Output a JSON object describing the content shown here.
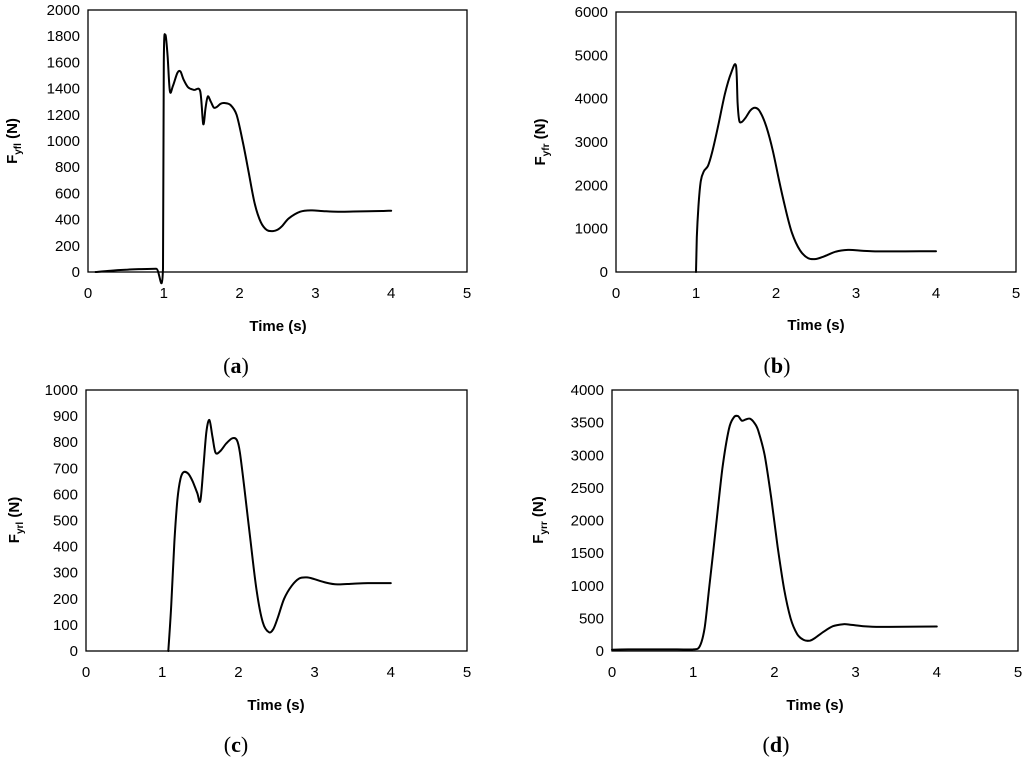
{
  "chart_data": [
    {
      "type": "line",
      "panel_label": "a",
      "xlabel": "Time (s)",
      "ylabel": {
        "main": "F",
        "sub": "yfl",
        "unit": " (N)"
      },
      "xlim": [
        0,
        5
      ],
      "ylim": [
        0,
        2000
      ],
      "xticks": [
        0,
        1,
        2,
        3,
        4,
        5
      ],
      "yticks": [
        0,
        200,
        400,
        600,
        800,
        1000,
        1200,
        1400,
        1600,
        1800,
        2000
      ],
      "grid": false,
      "series": [
        {
          "x": [
            0.1,
            0.3,
            0.5,
            0.7,
            0.9,
            0.99,
            1.0,
            1.02,
            1.05,
            1.08,
            1.12,
            1.18,
            1.22,
            1.26,
            1.32,
            1.4,
            1.48,
            1.52,
            1.55,
            1.58,
            1.62,
            1.66,
            1.7,
            1.75,
            1.8,
            1.88,
            1.96,
            2.04,
            2.12,
            2.2,
            2.28,
            2.36,
            2.44,
            2.5,
            2.56,
            2.65,
            2.8,
            2.95,
            3.1,
            3.3,
            3.5,
            3.7,
            3.9,
            4.0
          ],
          "y": [
            0,
            10,
            17,
            22,
            25,
            26,
            1600,
            1810,
            1650,
            1380,
            1420,
            1520,
            1530,
            1470,
            1410,
            1390,
            1380,
            1130,
            1250,
            1340,
            1300,
            1255,
            1260,
            1285,
            1290,
            1275,
            1200,
            1000,
            760,
            520,
            380,
            320,
            312,
            322,
            350,
            410,
            460,
            470,
            465,
            460,
            462,
            464,
            466,
            468
          ]
        }
      ]
    },
    {
      "type": "line",
      "panel_label": "b",
      "xlabel": "Time (s)",
      "ylabel": {
        "main": "F",
        "sub": "yfr",
        "unit": " (N)"
      },
      "xlim": [
        0,
        5
      ],
      "ylim": [
        0,
        6000
      ],
      "xticks": [
        0,
        1,
        2,
        3,
        4,
        5
      ],
      "yticks": [
        0,
        1000,
        2000,
        3000,
        4000,
        5000,
        6000
      ],
      "grid": false,
      "series": [
        {
          "x": [
            1.0,
            1.01,
            1.03,
            1.06,
            1.1,
            1.15,
            1.2,
            1.28,
            1.36,
            1.44,
            1.5,
            1.52,
            1.54,
            1.57,
            1.62,
            1.68,
            1.74,
            1.8,
            1.88,
            1.96,
            2.04,
            2.12,
            2.2,
            2.3,
            2.4,
            2.5,
            2.6,
            2.75,
            2.9,
            3.0,
            3.2,
            3.5,
            3.8,
            4.0
          ],
          "y": [
            0,
            800,
            1500,
            2100,
            2330,
            2450,
            2750,
            3400,
            4100,
            4600,
            4760,
            3900,
            3500,
            3460,
            3560,
            3730,
            3790,
            3700,
            3350,
            2800,
            2100,
            1450,
            900,
            500,
            320,
            300,
            360,
            470,
            510,
            500,
            480,
            475,
            478,
            480
          ]
        }
      ]
    },
    {
      "type": "line",
      "panel_label": "c",
      "xlabel": "Time (s)",
      "ylabel": {
        "main": "F",
        "sub": "yrl",
        "unit": " (N)"
      },
      "xlim": [
        0,
        5
      ],
      "ylim": [
        0,
        1000
      ],
      "xticks": [
        0,
        1,
        2,
        3,
        4,
        5
      ],
      "yticks": [
        0,
        100,
        200,
        300,
        400,
        500,
        600,
        700,
        800,
        900,
        1000
      ],
      "grid": false,
      "series": [
        {
          "x": [
            1.08,
            1.12,
            1.16,
            1.2,
            1.24,
            1.28,
            1.34,
            1.4,
            1.46,
            1.5,
            1.54,
            1.58,
            1.62,
            1.66,
            1.7,
            1.76,
            1.84,
            1.92,
            1.98,
            2.02,
            2.08,
            2.16,
            2.24,
            2.32,
            2.4,
            2.46,
            2.52,
            2.6,
            2.7,
            2.8,
            2.9,
            3.0,
            3.15,
            3.3,
            3.5,
            3.7,
            4.0
          ],
          "y": [
            0,
            180,
            420,
            580,
            660,
            685,
            680,
            650,
            605,
            575,
            700,
            840,
            885,
            820,
            760,
            765,
            795,
            815,
            808,
            760,
            620,
            420,
            230,
            110,
            72,
            85,
            130,
            200,
            250,
            278,
            282,
            275,
            262,
            255,
            258,
            260,
            260
          ]
        }
      ]
    },
    {
      "type": "line",
      "panel_label": "d",
      "xlabel": "Time (s)",
      "ylabel": {
        "main": "F",
        "sub": "yrr",
        "unit": " (N)"
      },
      "xlim": [
        0,
        5
      ],
      "ylim": [
        0,
        4000
      ],
      "xticks": [
        0,
        1,
        2,
        3,
        4,
        5
      ],
      "yticks": [
        0,
        500,
        1000,
        1500,
        2000,
        2500,
        3000,
        3500,
        4000
      ],
      "grid": false,
      "series": [
        {
          "x": [
            0.0,
            0.2,
            0.5,
            0.8,
            1.0,
            1.08,
            1.14,
            1.2,
            1.28,
            1.36,
            1.44,
            1.5,
            1.55,
            1.6,
            1.65,
            1.7,
            1.75,
            1.8,
            1.88,
            1.96,
            2.04,
            2.12,
            2.2,
            2.28,
            2.36,
            2.44,
            2.5,
            2.6,
            2.72,
            2.85,
            2.95,
            3.1,
            3.3,
            3.6,
            4.0
          ],
          "y": [
            20,
            25,
            25,
            25,
            25,
            70,
            350,
            1000,
            1900,
            2800,
            3400,
            3580,
            3600,
            3530,
            3550,
            3560,
            3500,
            3380,
            3000,
            2350,
            1600,
            950,
            500,
            260,
            170,
            160,
            200,
            290,
            380,
            410,
            400,
            380,
            370,
            372,
            375
          ]
        }
      ]
    }
  ]
}
